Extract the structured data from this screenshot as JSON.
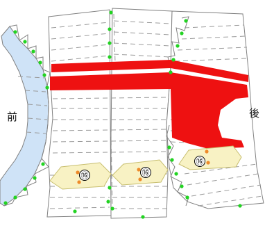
{
  "labels": {
    "front": "前",
    "back": "後"
  },
  "markers": [
    {
      "id": "marker-1",
      "text": "⑯"
    },
    {
      "id": "marker-2",
      "text": "⑯"
    },
    {
      "id": "marker-3",
      "text": "⑯"
    }
  ],
  "colors": {
    "outline": "#808080",
    "dash": "#9a9a9a",
    "front_piece_fill": "#cfe3f7",
    "red_band": "#ee1111",
    "hexagon_fill": "#f8f2c4",
    "hexagon_stroke": "#c8bf70",
    "green_dot": "#22d322",
    "orange_dot": "#ee8b2a"
  }
}
